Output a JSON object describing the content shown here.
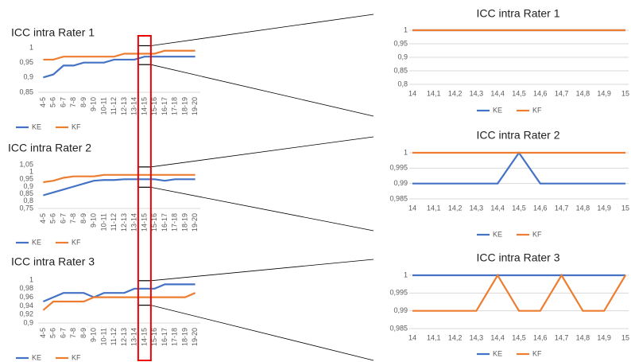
{
  "chart_data": [
    {
      "type": "line",
      "title": "ICC intra Rater 1",
      "categories": [
        "4-5",
        "5-6",
        "6-7",
        "7-8",
        "8-9",
        "9-10",
        "10-11",
        "11-12",
        "12-13",
        "13-14",
        "14-15",
        "15-16",
        "16-17",
        "17-18",
        "18-19",
        "19-20"
      ],
      "series": [
        {
          "name": "KE",
          "color": "#4472c4",
          "values": [
            0.9,
            0.91,
            0.94,
            0.94,
            0.95,
            0.95,
            0.95,
            0.96,
            0.96,
            0.96,
            0.97,
            0.97,
            0.97,
            0.97,
            0.97,
            0.97
          ]
        },
        {
          "name": "KF",
          "color": "#ed7d31",
          "values": [
            0.96,
            0.96,
            0.97,
            0.97,
            0.97,
            0.97,
            0.97,
            0.97,
            0.98,
            0.98,
            0.98,
            0.98,
            0.99,
            0.99,
            0.99,
            0.99
          ]
        }
      ],
      "ylim": [
        0.85,
        1
      ],
      "yticks": [
        {
          "value": 0.85,
          "label": "0,85"
        },
        {
          "value": 0.9,
          "label": "0,9"
        },
        {
          "value": 0.95,
          "label": "0,95"
        },
        1
      ],
      "grid": false
    },
    {
      "type": "line",
      "title": "ICC intra Rater 2",
      "categories": [
        "4-5",
        "5-6",
        "6-7",
        "7-8",
        "8-9",
        "9-10",
        "10-11",
        "11-12",
        "12-13",
        "13-14",
        "14-15",
        "15-16",
        "16-17",
        "17-18",
        "18-19",
        "19-20"
      ],
      "series": [
        {
          "name": "KE",
          "color": "#4472c4",
          "values": [
            0.84,
            0.86,
            0.88,
            0.9,
            0.92,
            0.94,
            0.945,
            0.945,
            0.95,
            0.95,
            0.95,
            0.95,
            0.94,
            0.95,
            0.95,
            0.95
          ]
        },
        {
          "name": "KF",
          "color": "#ed7d31",
          "values": [
            0.93,
            0.94,
            0.96,
            0.97,
            0.97,
            0.97,
            0.98,
            0.98,
            0.98,
            0.98,
            0.98,
            0.98,
            0.98,
            0.98,
            0.98,
            0.98
          ]
        }
      ],
      "ylim": [
        0.75,
        1.05
      ],
      "yticks": [
        {
          "value": 0.75,
          "label": "0,75"
        },
        {
          "value": 0.8,
          "label": "0,8"
        },
        {
          "value": 0.85,
          "label": "0,85"
        },
        {
          "value": 0.9,
          "label": "0,9"
        },
        {
          "value": 0.95,
          "label": "0,95"
        },
        1,
        {
          "value": 1.05,
          "label": "1,05"
        }
      ],
      "grid": false
    },
    {
      "type": "line",
      "title": "ICC intra Rater 3",
      "categories": [
        "4-5",
        "5-6",
        "6-7",
        "7-8",
        "8-9",
        "9-10",
        "10-11",
        "11-12",
        "12-13",
        "13-14",
        "14-15",
        "15-16",
        "16-17",
        "17-18",
        "18-19",
        "19-20"
      ],
      "series": [
        {
          "name": "KE",
          "color": "#4472c4",
          "values": [
            0.95,
            0.96,
            0.97,
            0.97,
            0.97,
            0.96,
            0.97,
            0.97,
            0.97,
            0.98,
            0.98,
            0.98,
            0.99,
            0.99,
            0.99,
            0.99
          ]
        },
        {
          "name": "KF",
          "color": "#ed7d31",
          "values": [
            0.93,
            0.95,
            0.95,
            0.95,
            0.95,
            0.96,
            0.96,
            0.96,
            0.96,
            0.96,
            0.96,
            0.96,
            0.96,
            0.96,
            0.96,
            0.97
          ]
        }
      ],
      "ylim": [
        0.9,
        1
      ],
      "yticks": [
        {
          "value": 0.9,
          "label": "0,9"
        },
        {
          "value": 0.92,
          "label": "0,92"
        },
        {
          "value": 0.94,
          "label": "0,94"
        },
        {
          "value": 0.96,
          "label": "0,96"
        },
        {
          "value": 0.98,
          "label": "0,98"
        },
        1
      ],
      "grid": false
    },
    {
      "type": "line",
      "title": "ICC intra Rater 1",
      "categories": [
        "14",
        "14,1",
        "14,2",
        "14,3",
        "14,4",
        "14,5",
        "14,6",
        "14,7",
        "14,8",
        "14,9",
        "15"
      ],
      "series": [
        {
          "name": "KE",
          "color": "#4472c4",
          "values": [
            1,
            1,
            1,
            1,
            1,
            1,
            1,
            1,
            1,
            1,
            1
          ]
        },
        {
          "name": "KF",
          "color": "#ed7d31",
          "values": [
            1,
            1,
            1,
            1,
            1,
            1,
            1,
            1,
            1,
            1,
            1
          ]
        }
      ],
      "ylim": [
        0.8,
        1
      ],
      "yticks": [
        {
          "value": 0.8,
          "label": "0,8"
        },
        {
          "value": 0.85,
          "label": "0,85"
        },
        {
          "value": 0.9,
          "label": "0,9"
        },
        {
          "value": 0.95,
          "label": "0,95"
        },
        1
      ],
      "grid": true
    },
    {
      "type": "line",
      "title": "ICC intra Rater 2",
      "categories": [
        "14",
        "14,1",
        "14,2",
        "14,3",
        "14,4",
        "14,5",
        "14,6",
        "14,7",
        "14,8",
        "14,9",
        "15"
      ],
      "series": [
        {
          "name": "KE",
          "color": "#4472c4",
          "values": [
            0.99,
            0.99,
            0.99,
            0.99,
            0.99,
            1,
            0.99,
            0.99,
            0.99,
            0.99,
            0.99
          ]
        },
        {
          "name": "KF",
          "color": "#ed7d31",
          "values": [
            1,
            1,
            1,
            1,
            1,
            1,
            1,
            1,
            1,
            1,
            1
          ]
        }
      ],
      "ylim": [
        0.985,
        1
      ],
      "yticks": [
        {
          "value": 0.985,
          "label": "0,985"
        },
        {
          "value": 0.99,
          "label": "0,99"
        },
        {
          "value": 0.995,
          "label": "0,995"
        },
        1
      ],
      "grid": true
    },
    {
      "type": "line",
      "title": "ICC intra Rater 3",
      "categories": [
        "14",
        "14,1",
        "14,2",
        "14,3",
        "14,4",
        "14,5",
        "14,6",
        "14,7",
        "14,8",
        "14,9",
        "15"
      ],
      "series": [
        {
          "name": "KE",
          "color": "#4472c4",
          "values": [
            1,
            1,
            1,
            1,
            1,
            1,
            1,
            1,
            1,
            1,
            1
          ]
        },
        {
          "name": "KF",
          "color": "#ed7d31",
          "values": [
            0.99,
            0.99,
            0.99,
            0.99,
            1,
            0.99,
            0.99,
            1,
            0.99,
            0.99,
            1
          ]
        }
      ],
      "ylim": [
        0.985,
        1
      ],
      "yticks": [
        {
          "value": 0.985,
          "label": "0,985"
        },
        {
          "value": 0.99,
          "label": "0,99"
        },
        {
          "value": 0.995,
          "label": "0,995"
        },
        1
      ],
      "grid": true
    }
  ]
}
